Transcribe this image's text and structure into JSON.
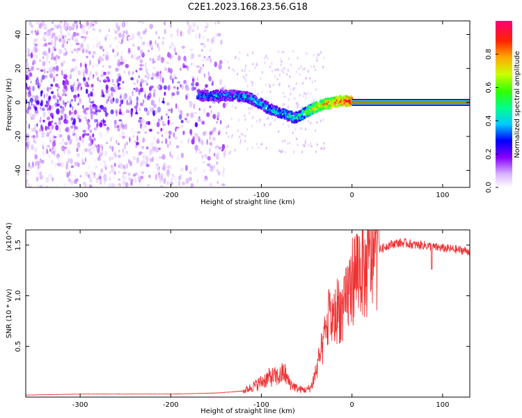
{
  "figure": {
    "title": "C2E1.2023.168.23.56.G18"
  },
  "chart_data": [
    {
      "type": "heatmap",
      "xlabel": "Height of straight line (km)",
      "ylabel": "Frequency (Hz)",
      "xlim": [
        -360,
        130
      ],
      "ylim": [
        -50,
        48
      ],
      "xticks": [
        -300,
        -200,
        -100,
        0,
        100
      ],
      "yticks": [
        -40,
        -20,
        0,
        20,
        40
      ],
      "colorbar": {
        "label": "Normalized spectral amplitude",
        "range": [
          0,
          1
        ],
        "ticks": [
          "0.0",
          "0.2",
          "0.4",
          "0.6",
          "0.8"
        ],
        "tick_values": [
          0.0,
          0.2,
          0.4,
          0.6,
          0.8
        ]
      },
      "track": {
        "x": [
          -170,
          -150,
          -130,
          -115,
          -100,
          -90,
          -80,
          -70,
          -62,
          -55,
          -48,
          -40,
          -30,
          -20,
          -10,
          0,
          20,
          60,
          100,
          130
        ],
        "frequency": [
          4,
          4,
          4,
          3,
          -1,
          -4,
          -6,
          -8,
          -9,
          -7,
          -5,
          -3,
          -1,
          0,
          1,
          0.5,
          0,
          0,
          0,
          0
        ],
        "amplitude": [
          0.3,
          0.35,
          0.35,
          0.4,
          0.4,
          0.4,
          0.4,
          0.45,
          0.45,
          0.5,
          0.6,
          0.7,
          0.75,
          0.8,
          0.85,
          0.9,
          0.95,
          0.95,
          0.95,
          0.95
        ]
      },
      "noise_region": {
        "x_range": [
          -360,
          -140
        ],
        "frequency_range": [
          -50,
          48
        ]
      }
    },
    {
      "type": "line",
      "xlabel": "Height of straight line (km)",
      "ylabel": "SNR (10 * v/v)",
      "y_multiplier": "(x10^4)",
      "xlim": [
        -360,
        130
      ],
      "ylim": [
        0,
        16500
      ],
      "xticks": [
        -300,
        -200,
        -100,
        0,
        100
      ],
      "yticks": [
        5000,
        10000,
        15000
      ],
      "ytick_labels": [
        "0.5",
        "1.0",
        "1.5"
      ],
      "series": [
        {
          "color": "#ee3333",
          "x": [
            -360,
            -300,
            -250,
            -200,
            -150,
            -120,
            -110,
            -100,
            -90,
            -80,
            -75,
            -70,
            -60,
            -50,
            -45,
            -40,
            -35,
            -30,
            -25,
            -20,
            -15,
            -10,
            -5,
            0,
            5,
            10,
            15,
            20,
            25,
            30,
            40,
            50,
            60,
            70,
            80,
            90,
            100,
            110,
            120,
            130
          ],
          "y": [
            200,
            300,
            300,
            300,
            400,
            600,
            1000,
            1500,
            2000,
            2000,
            2500,
            1500,
            800,
            700,
            1000,
            2500,
            4000,
            6000,
            8000,
            7500,
            9000,
            8000,
            10000,
            11500,
            12500,
            13000,
            12000,
            13500,
            14000,
            14500,
            15000,
            15200,
            15200,
            15000,
            15000,
            14800,
            14700,
            14600,
            14500,
            14400
          ]
        }
      ]
    }
  ]
}
